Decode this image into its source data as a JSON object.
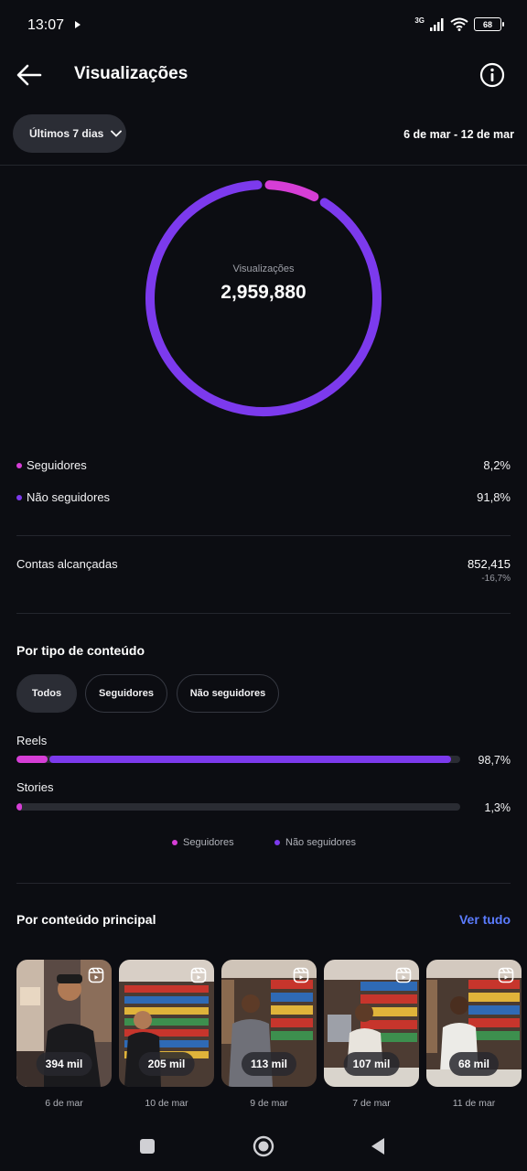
{
  "status_bar": {
    "time": "13:07",
    "network": "3G",
    "battery": "68"
  },
  "header": {
    "title": "Visualizações",
    "back_icon": "arrow-left-icon",
    "info_icon": "info-icon"
  },
  "filter": {
    "label": "Últimos 7 dias",
    "date_range": "6 de mar - 12 de mar"
  },
  "colors": {
    "followers": "#d63ed6",
    "non_followers": "#7c3aed",
    "accent": "#5b7cff",
    "background": "#0c0d12"
  },
  "donut": {
    "label": "Visualizações",
    "value": "2,959,880",
    "followers_fraction": 0.082,
    "non_followers_fraction": 0.918
  },
  "audience": [
    {
      "label": "Seguidores",
      "pct": "8,2%"
    },
    {
      "label": "Não seguidores",
      "pct": "91,8%"
    }
  ],
  "reach": {
    "label": "Contas alcançadas",
    "value": "852,415",
    "change": "-16,7%"
  },
  "content_type": {
    "title": "Por tipo de conteúdo",
    "tabs": [
      "Todos",
      "Seguidores",
      "Não seguidores"
    ],
    "active_tab": "Todos",
    "rows": [
      {
        "label": "Reels",
        "pct": "98,7%",
        "total_fraction": 0.987,
        "followers_fraction": 0.07
      },
      {
        "label": "Stories",
        "pct": "1,3%",
        "total_fraction": 0.013,
        "followers_fraction": 0.013
      }
    ],
    "legend": [
      "Seguidores",
      "Não seguidores"
    ]
  },
  "top_content": {
    "title": "Por conteúdo principal",
    "see_all": "Ver tudo",
    "items": [
      {
        "views": "394 mil",
        "date": "6 de mar"
      },
      {
        "views": "205 mil",
        "date": "10 de mar"
      },
      {
        "views": "113 mil",
        "date": "9 de mar"
      },
      {
        "views": "107 mil",
        "date": "7 de mar"
      },
      {
        "views": "68 mil",
        "date": "11 de mar"
      }
    ]
  }
}
